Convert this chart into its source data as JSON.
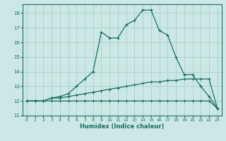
{
  "title": "",
  "xlabel": "Humidex (Indice chaleur)",
  "bg_color": "#cce8e4",
  "grid_color": "#aad4cc",
  "line_color": "#1a6e62",
  "xlim": [
    -0.5,
    23.5
  ],
  "ylim": [
    11,
    18.6
  ],
  "xticks": [
    0,
    1,
    2,
    3,
    4,
    5,
    6,
    7,
    8,
    9,
    10,
    11,
    12,
    13,
    14,
    15,
    16,
    17,
    18,
    19,
    20,
    21,
    22,
    23
  ],
  "yticks": [
    11,
    12,
    13,
    14,
    15,
    16,
    17,
    18
  ],
  "line1_x": [
    0,
    1,
    2,
    3,
    4,
    5,
    6,
    7,
    8,
    9,
    10,
    11,
    12,
    13,
    14,
    15,
    16,
    17,
    18,
    19,
    20,
    21,
    22,
    23
  ],
  "line1_y": [
    12,
    12,
    12,
    12,
    12,
    12,
    12,
    12,
    12,
    12,
    12,
    12,
    12,
    12,
    12,
    12,
    12,
    12,
    12,
    12,
    12,
    12,
    12,
    11.5
  ],
  "line2_x": [
    0,
    1,
    2,
    3,
    4,
    5,
    6,
    7,
    8,
    9,
    10,
    11,
    12,
    13,
    14,
    15,
    16,
    17,
    18,
    19,
    20,
    21,
    22,
    23
  ],
  "line2_y": [
    12,
    12,
    12,
    12.2,
    12.2,
    12.3,
    12.4,
    12.5,
    12.6,
    12.7,
    12.8,
    12.9,
    13.0,
    13.1,
    13.2,
    13.3,
    13.3,
    13.4,
    13.4,
    13.5,
    13.5,
    13.5,
    13.5,
    11.5
  ],
  "line3_x": [
    0,
    1,
    2,
    3,
    4,
    5,
    6,
    7,
    8,
    9,
    10,
    11,
    12,
    13,
    14,
    15,
    16,
    17,
    18,
    19,
    20,
    21,
    22,
    23
  ],
  "line3_y": [
    12,
    12,
    12,
    12.2,
    12.3,
    12.5,
    13.0,
    13.5,
    14.0,
    16.7,
    16.3,
    16.3,
    17.2,
    17.5,
    18.2,
    18.2,
    16.8,
    16.5,
    15.0,
    13.8,
    13.8,
    13.0,
    12.3,
    11.5
  ]
}
